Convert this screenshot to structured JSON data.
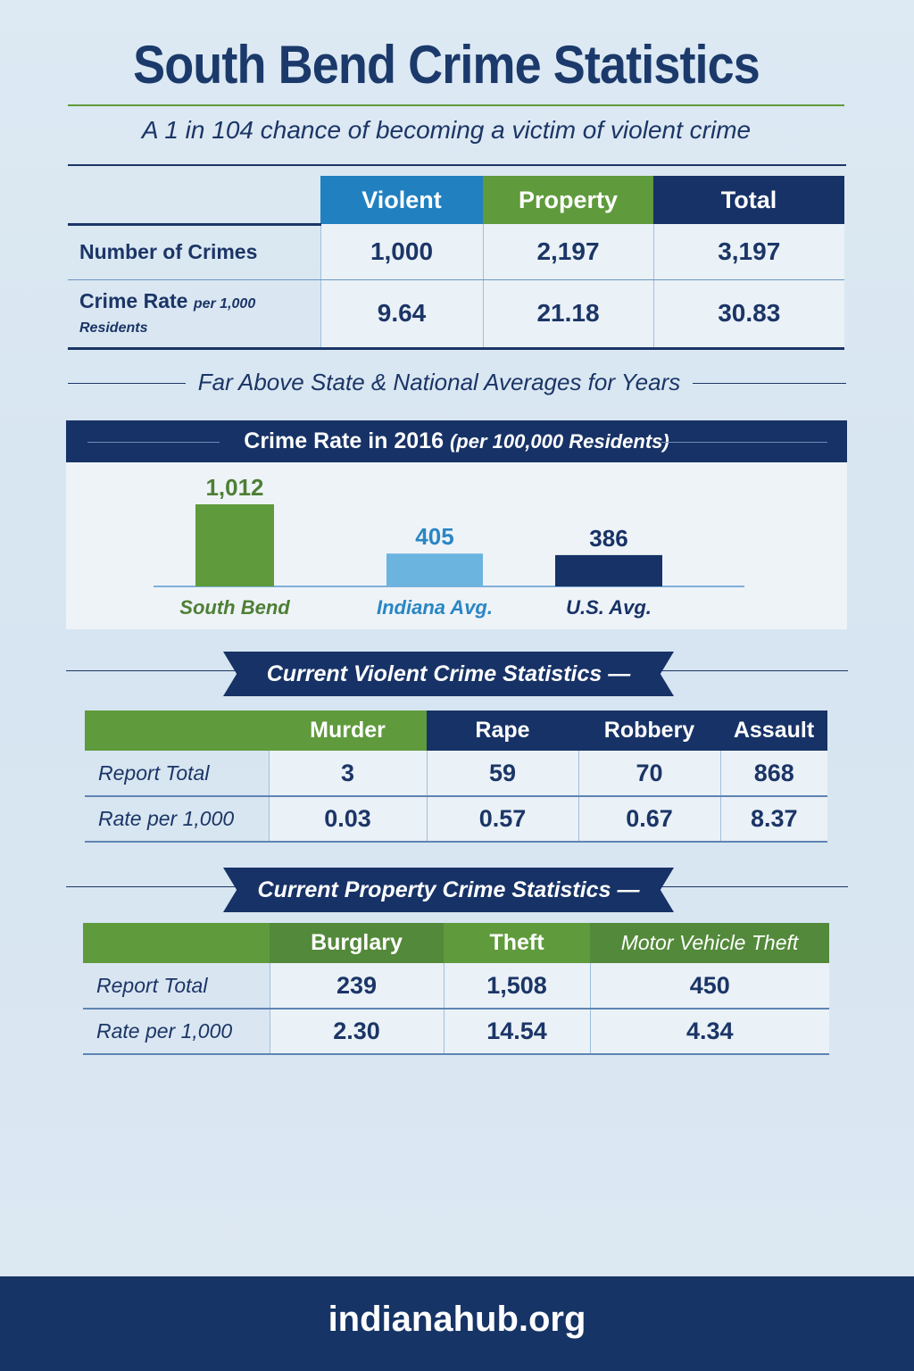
{
  "title": "South Bend Crime Statistics",
  "subtitle": "A 1 in 104 chance of becoming a victim of violent crime",
  "summary_table": {
    "headers": [
      "Violent",
      "Property",
      "Total"
    ],
    "rows": [
      {
        "label": "Number of Crimes",
        "label_suffix": "",
        "values": [
          "1,000",
          "2,197",
          "3,197"
        ]
      },
      {
        "label": "Crime Rate",
        "label_suffix": "per 1,000 Residents",
        "values": [
          "9.64",
          "21.18",
          "30.83"
        ]
      }
    ]
  },
  "section_heading": "Far Above State & National Averages for Years",
  "chart_data": {
    "type": "bar",
    "title": "Crime Rate in 2016",
    "subtitle": "(per 100,000 Residents)",
    "categories": [
      "South Bend",
      "Indiana Avg.",
      "U.S. Avg."
    ],
    "values": [
      1012,
      405,
      386
    ],
    "data_labels": [
      "1,012",
      "405",
      "386"
    ],
    "colors": [
      "#5f9a3c",
      "#6bb4e0",
      "#173266"
    ],
    "label_colors": [
      "#4e7f35",
      "#2a86c3",
      "#173266"
    ],
    "grid": false
  },
  "violent": {
    "heading": "Current Violent Crime Statistics",
    "headers": [
      "Murder",
      "Rape",
      "Robbery",
      "Assault"
    ],
    "rows": [
      {
        "label": "Report Total",
        "values": [
          "3",
          "59",
          "70",
          "868"
        ]
      },
      {
        "label": "Rate per 1,000",
        "values": [
          "0.03",
          "0.57",
          "0.67",
          "8.37"
        ]
      }
    ]
  },
  "property": {
    "heading": "Current Property Crime Statistics",
    "headers": [
      "Burglary",
      "Theft",
      "Motor Vehicle Theft"
    ],
    "rows": [
      {
        "label": "Report Total",
        "values": [
          "239",
          "1,508",
          "450"
        ]
      },
      {
        "label": "Rate per 1,000",
        "values": [
          "2.30",
          "14.54",
          "4.34"
        ]
      }
    ]
  },
  "footer": {
    "site": "indianahub.org"
  },
  "colors": {
    "navy": "#173266",
    "green": "#5f9a3c",
    "blue": "#2180c0"
  }
}
